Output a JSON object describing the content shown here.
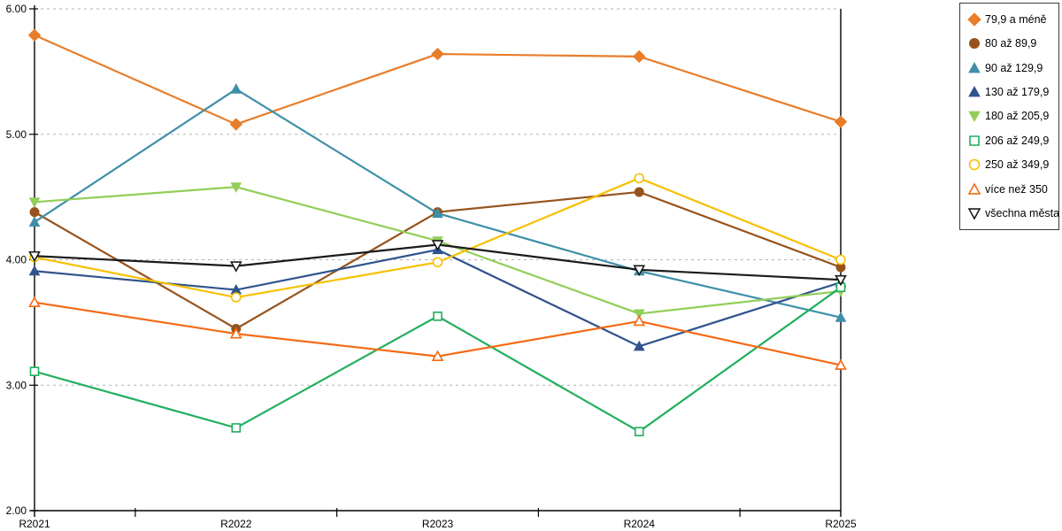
{
  "chart_data": {
    "type": "line",
    "title": "",
    "x": [
      "R2021",
      "R2022",
      "R2023",
      "R2024",
      "R2025"
    ],
    "ylim": [
      2.0,
      6.0
    ],
    "yticks": [
      2,
      3,
      4,
      5,
      6
    ],
    "ytick_labels": [
      "2.00",
      "3.00",
      "4.00",
      "5.00",
      "6.00"
    ],
    "grid": "horizontal-dashed",
    "legend_position": "right",
    "series": [
      {
        "name": "79,9 a méně",
        "color": "#E87D2A",
        "marker": "diamond",
        "fill": "solid",
        "values": [
          5.79,
          5.08,
          5.64,
          5.62,
          5.1
        ]
      },
      {
        "name": "80 až 89,9",
        "color": "#96531D",
        "marker": "circle",
        "fill": "solid",
        "values": [
          4.38,
          3.45,
          4.38,
          4.54,
          3.94
        ]
      },
      {
        "name": "90 až 129,9",
        "color": "#3E8FA8",
        "marker": "triangle-up",
        "fill": "solid",
        "values": [
          4.3,
          5.36,
          4.37,
          3.91,
          3.54
        ]
      },
      {
        "name": "130 až 179,9",
        "color": "#30548C",
        "marker": "triangle-up",
        "fill": "solid",
        "values": [
          3.91,
          3.76,
          4.08,
          3.31,
          3.82
        ]
      },
      {
        "name": "180 až 205,9",
        "color": "#92CE58",
        "marker": "triangle-down",
        "fill": "solid",
        "values": [
          4.46,
          4.58,
          4.15,
          3.57,
          3.75
        ]
      },
      {
        "name": "206 až 249,9",
        "color": "#22AF5F",
        "marker": "square",
        "fill": "hollow",
        "values": [
          3.11,
          2.66,
          3.55,
          2.63,
          3.78
        ]
      },
      {
        "name": "250 až 349,9",
        "color": "#F7C000",
        "marker": "circle",
        "fill": "hollow",
        "values": [
          4.02,
          3.7,
          3.98,
          4.65,
          4.0
        ]
      },
      {
        "name": "více než 350",
        "color": "#F46A14",
        "marker": "triangle-up",
        "fill": "hollow",
        "values": [
          3.66,
          3.41,
          3.23,
          3.51,
          3.16
        ]
      },
      {
        "name": "všechna města",
        "color": "#1A1A1A",
        "marker": "triangle-down",
        "fill": "hollow",
        "values": [
          4.03,
          3.95,
          4.12,
          3.92,
          3.84
        ]
      }
    ]
  },
  "colors": {
    "background": "#FFFFFF",
    "grid": "#B3B3B3",
    "axis": "#000000",
    "legend_border": "#3A3A3A"
  }
}
